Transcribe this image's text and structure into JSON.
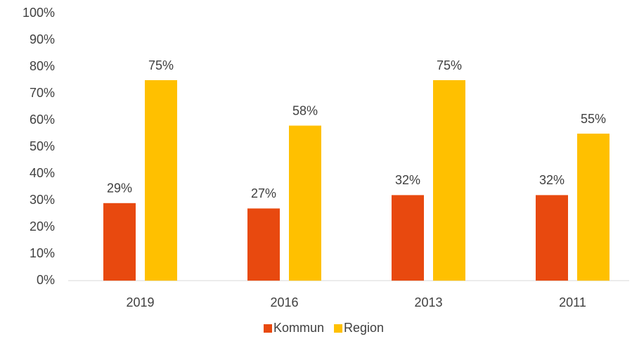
{
  "chart_data": {
    "type": "bar",
    "categories": [
      "2019",
      "2016",
      "2013",
      "2011"
    ],
    "series": [
      {
        "name": "Kommun",
        "color": "#e8490f",
        "values": [
          29,
          27,
          32,
          32
        ],
        "value_labels": [
          "29%",
          "27%",
          "32%",
          "32%"
        ]
      },
      {
        "name": "Region",
        "color": "#ffc000",
        "values": [
          75,
          58,
          75,
          55
        ],
        "value_labels": [
          "75%",
          "58%",
          "75%",
          "55%"
        ]
      }
    ],
    "ylim": [
      0,
      100
    ],
    "yticks": [
      {
        "value": 0,
        "label": "0%"
      },
      {
        "value": 10,
        "label": "10%"
      },
      {
        "value": 20,
        "label": "20%"
      },
      {
        "value": 30,
        "label": "30%"
      },
      {
        "value": 40,
        "label": "40%"
      },
      {
        "value": 50,
        "label": "50%"
      },
      {
        "value": 60,
        "label": "60%"
      },
      {
        "value": 70,
        "label": "70%"
      },
      {
        "value": 80,
        "label": "80%"
      },
      {
        "value": 90,
        "label": "90%"
      },
      {
        "value": 100,
        "label": "100%"
      }
    ],
    "grid": false,
    "legend": "bottom"
  }
}
